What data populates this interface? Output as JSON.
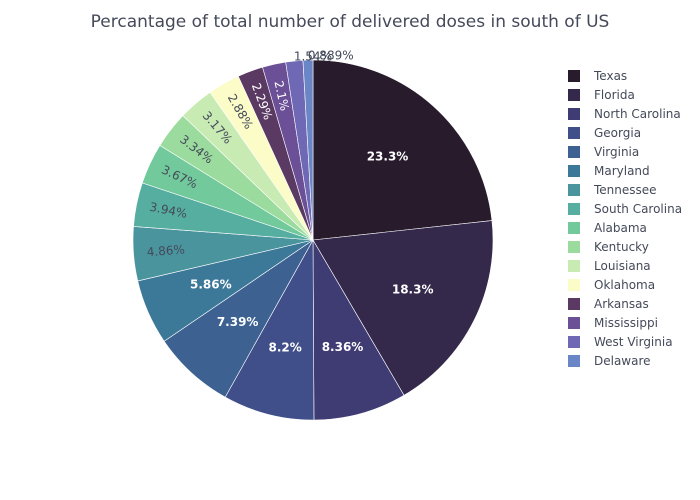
{
  "chart_data": {
    "type": "pie",
    "title": "Percantage of total number of delivered doses in south  of US",
    "direction": "clockwise",
    "start": "12 o'clock",
    "legend_position": "right",
    "slices": [
      {
        "label": "Texas",
        "value": 23.3,
        "text": "23.3%",
        "color": "#271b2c"
      },
      {
        "label": "Florida",
        "value": 18.3,
        "text": "18.3%",
        "color": "#34284b"
      },
      {
        "label": "North Carolina",
        "value": 8.36,
        "text": "8.36%",
        "color": "#3f3b73"
      },
      {
        "label": "Georgia",
        "value": 8.2,
        "text": "8.2%",
        "color": "#404f8a"
      },
      {
        "label": "Virginia",
        "value": 7.39,
        "text": "7.39%",
        "color": "#3d6292"
      },
      {
        "label": "Maryland",
        "value": 5.86,
        "text": "5.86%",
        "color": "#3c7898"
      },
      {
        "label": "Tennessee",
        "value": 4.86,
        "text": "4.86%",
        "color": "#4a949e"
      },
      {
        "label": "South Carolina",
        "value": 3.94,
        "text": "3.94%",
        "color": "#55aea0"
      },
      {
        "label": "Alabama",
        "value": 3.67,
        "text": "3.67%",
        "color": "#72c99c"
      },
      {
        "label": "Kentucky",
        "value": 3.34,
        "text": "3.34%",
        "color": "#9bdb9d"
      },
      {
        "label": "Louisiana",
        "value": 3.17,
        "text": "3.17%",
        "color": "#c8eab3"
      },
      {
        "label": "Oklahoma",
        "value": 2.88,
        "text": "2.88%",
        "color": "#fbfcc8"
      },
      {
        "label": "Arkansas",
        "value": 2.29,
        "text": "2.29%",
        "color": "#5a3a62"
      },
      {
        "label": "Mississippi",
        "value": 2.1,
        "text": "2.1%",
        "color": "#6b4f97"
      },
      {
        "label": "West Virginia",
        "value": 1.54,
        "text": "1.54%",
        "color": "#6f68b5"
      },
      {
        "label": "Delaware",
        "value": 0.889,
        "text": "0.889%",
        "color": "#6b86c6"
      }
    ]
  }
}
